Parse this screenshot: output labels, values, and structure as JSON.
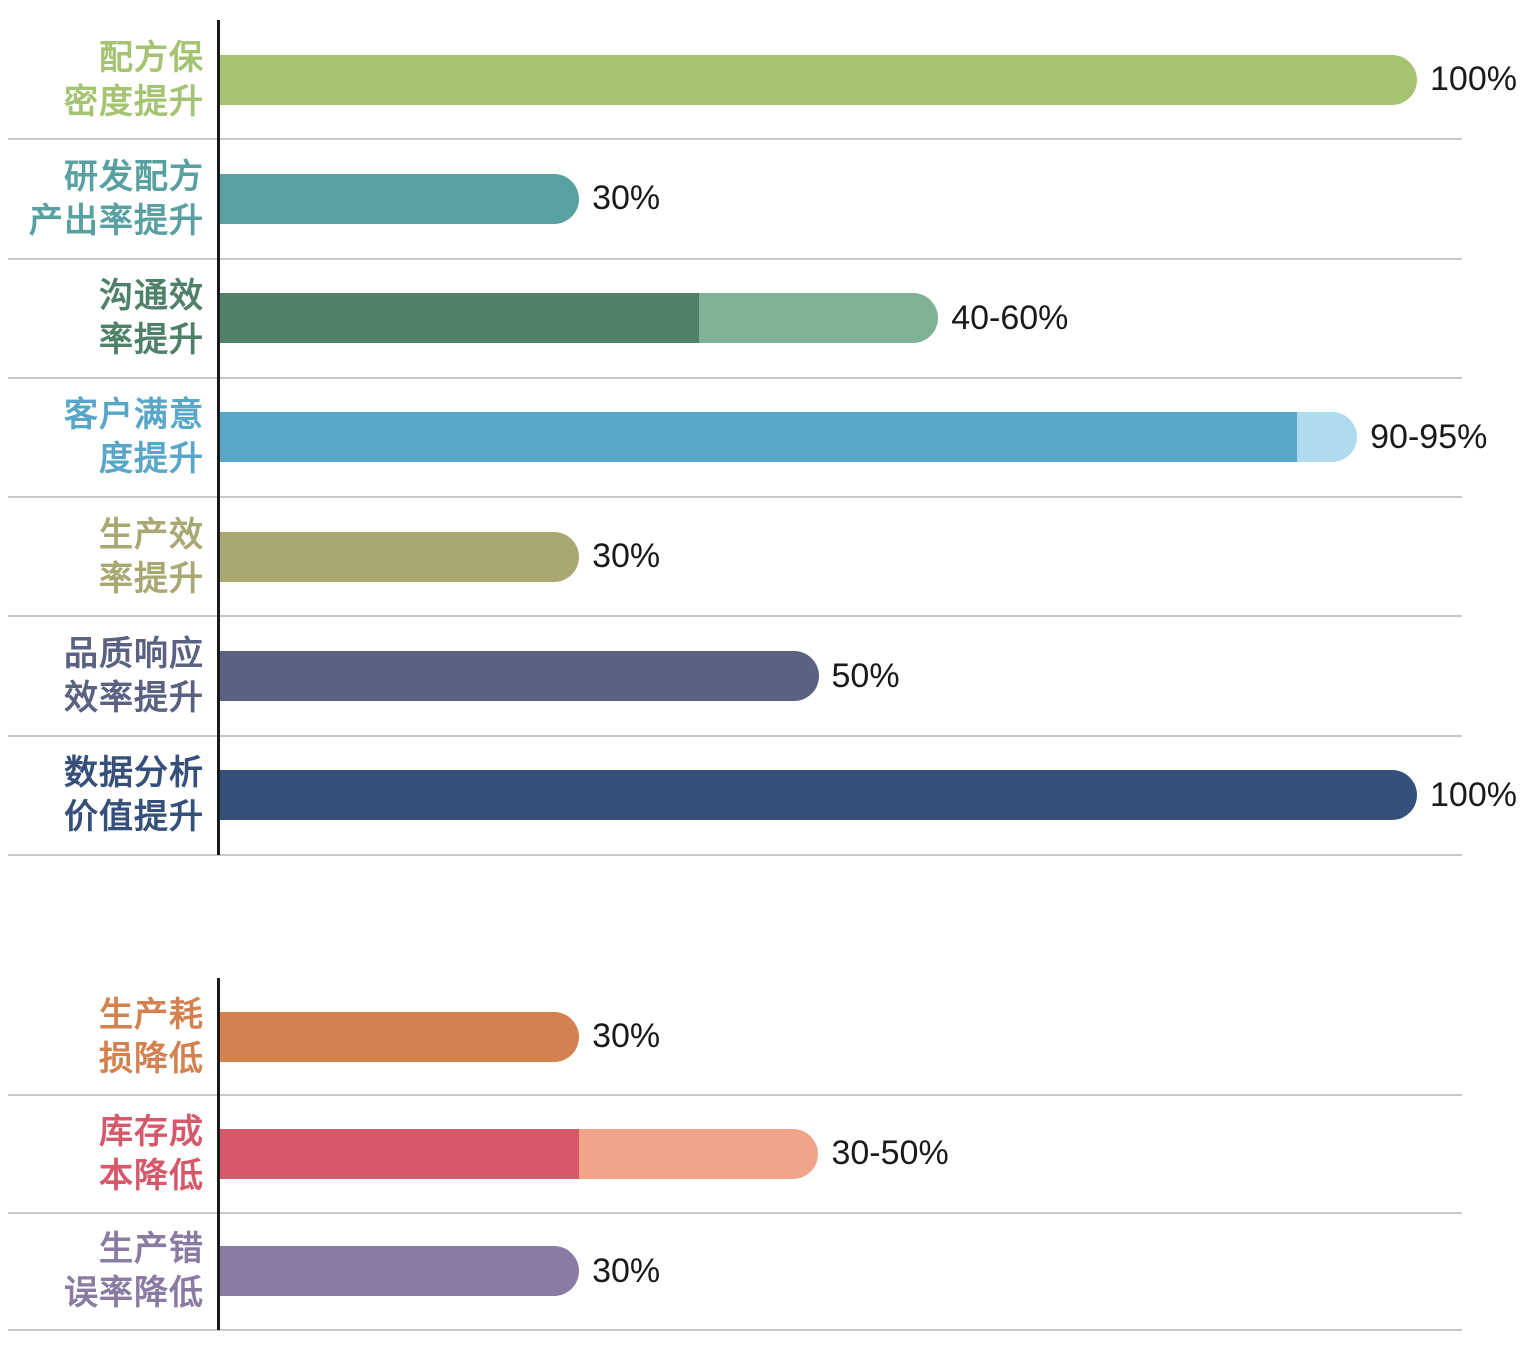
{
  "chart_data": {
    "type": "bar",
    "orientation": "horizontal",
    "value_unit": "percent",
    "axis_max": 100,
    "grid": "row-separators",
    "legend": "none",
    "styles": {
      "background": "#ffffff",
      "axis_color": "#1a1a1a",
      "separator_color": "#c8c8c8",
      "value_text_color": "#1a1a1a"
    },
    "sections": [
      {
        "name": "improvements",
        "rows": [
          {
            "category": "配方保密度提升",
            "label_lines": [
              "配方保",
              "密度提升"
            ],
            "value_min": 100,
            "value_max": 100,
            "value_label": "100%",
            "color": "#a5c472",
            "color_light": null
          },
          {
            "category": "研发配方产出率提升",
            "label_lines": [
              "研发配方",
              "产出率提升"
            ],
            "value_min": 30,
            "value_max": 30,
            "value_label": "30%",
            "color": "#58a1a0",
            "color_light": null
          },
          {
            "category": "沟通效率提升",
            "label_lines": [
              "沟通效",
              "率提升"
            ],
            "value_min": 40,
            "value_max": 60,
            "value_label": "40-60%",
            "color": "#4f8168",
            "color_light": "#7fb295"
          },
          {
            "category": "客户满意度提升",
            "label_lines": [
              "客户满意",
              "度提升"
            ],
            "value_min": 90,
            "value_max": 95,
            "value_label": "90-95%",
            "color": "#58a7c9",
            "color_light": "#aedcee"
          },
          {
            "category": "生产效率提升",
            "label_lines": [
              "生产效",
              "率提升"
            ],
            "value_min": 30,
            "value_max": 30,
            "value_label": "30%",
            "color": "#a9a873",
            "color_light": null
          },
          {
            "category": "品质响应效率提升",
            "label_lines": [
              "品质响应",
              "效率提升"
            ],
            "value_min": 50,
            "value_max": 50,
            "value_label": "50%",
            "color": "#5b6182",
            "color_light": null
          },
          {
            "category": "数据分析价值提升",
            "label_lines": [
              "数据分析",
              "价值提升"
            ],
            "value_min": 100,
            "value_max": 100,
            "value_label": "100%",
            "color": "#35507a",
            "color_light": null
          }
        ]
      },
      {
        "name": "reductions",
        "rows": [
          {
            "category": "生产耗损降低",
            "label_lines": [
              "生产耗",
              "损降低"
            ],
            "value_min": 30,
            "value_max": 30,
            "value_label": "30%",
            "color": "#d3824f",
            "color_light": null
          },
          {
            "category": "库存成本降低",
            "label_lines": [
              "库存成",
              "本降低"
            ],
            "value_min": 30,
            "value_max": 50,
            "value_label": "30-50%",
            "color": "#d5596b",
            "color_light": "#f2a48b"
          },
          {
            "category": "生产错误率降低",
            "label_lines": [
              "生产错",
              "误率降低"
            ],
            "value_min": 30,
            "value_max": 30,
            "value_label": "30%",
            "color": "#8a7ba3",
            "color_light": null
          }
        ]
      }
    ]
  }
}
